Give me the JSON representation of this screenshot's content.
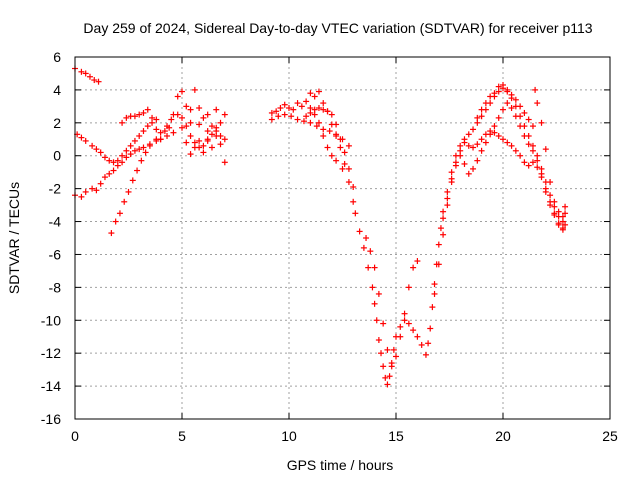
{
  "chart_data": {
    "type": "scatter",
    "title": "Day 259 of 2024, Sidereal Day-to-day VTEC variation (SDTVAR) for receiver p113",
    "xlabel": "GPS time / hours",
    "ylabel": "SDTVAR / TECUs",
    "xlim": [
      0,
      25
    ],
    "ylim": [
      -16,
      6
    ],
    "xticks": [
      0,
      5,
      10,
      15,
      20,
      25
    ],
    "yticks": [
      -16,
      -14,
      -12,
      -10,
      -8,
      -6,
      -4,
      -2,
      0,
      2,
      4,
      6
    ],
    "grid": true,
    "marker": "+",
    "marker_color": "#ff0000",
    "series": [
      {
        "points": [
          [
            0.0,
            5.3
          ],
          [
            0.3,
            5.1
          ],
          [
            0.5,
            5.0
          ],
          [
            0.7,
            4.8
          ],
          [
            0.9,
            4.6
          ],
          [
            1.1,
            4.5
          ],
          [
            0.0,
            -2.4
          ],
          [
            0.3,
            -2.5
          ],
          [
            0.5,
            -2.2
          ],
          [
            0.8,
            -2.0
          ],
          [
            1.0,
            -2.1
          ],
          [
            1.2,
            -1.7
          ],
          [
            1.4,
            -1.3
          ],
          [
            1.6,
            -1.1
          ],
          [
            1.8,
            -0.9
          ],
          [
            2.0,
            -0.6
          ],
          [
            2.2,
            -0.4
          ],
          [
            2.4,
            -0.1
          ],
          [
            2.6,
            0.1
          ],
          [
            2.8,
            0.3
          ],
          [
            3.0,
            0.4
          ],
          [
            3.2,
            0.5
          ],
          [
            3.5,
            0.7
          ],
          [
            3.8,
            0.9
          ],
          [
            4.0,
            1.0
          ],
          [
            4.3,
            1.2
          ],
          [
            4.6,
            1.4
          ],
          [
            5.0,
            1.7
          ],
          [
            5.4,
            2.0
          ],
          [
            5.8,
            1.9
          ],
          [
            6.2,
            1.5
          ],
          [
            6.6,
            1.2
          ],
          [
            7.0,
            1.0
          ],
          [
            0.1,
            1.3
          ],
          [
            0.3,
            1.1
          ],
          [
            0.5,
            0.9
          ],
          [
            0.8,
            0.6
          ],
          [
            1.0,
            0.4
          ],
          [
            1.2,
            0.2
          ],
          [
            1.4,
            -0.1
          ],
          [
            1.6,
            -0.3
          ],
          [
            1.8,
            -0.4
          ],
          [
            2.0,
            -0.3
          ],
          [
            2.2,
            0.0
          ],
          [
            2.4,
            0.3
          ],
          [
            2.6,
            0.6
          ],
          [
            2.8,
            0.9
          ],
          [
            3.0,
            1.2
          ],
          [
            3.2,
            1.5
          ],
          [
            3.4,
            1.8
          ],
          [
            3.6,
            2.0
          ],
          [
            3.8,
            2.2
          ],
          [
            1.7,
            -4.7
          ],
          [
            1.9,
            -4.0
          ],
          [
            2.1,
            -3.5
          ],
          [
            2.3,
            -2.8
          ],
          [
            2.5,
            -2.2
          ],
          [
            2.7,
            -1.5
          ],
          [
            2.9,
            -0.9
          ],
          [
            3.1,
            -0.3
          ],
          [
            3.3,
            0.2
          ],
          [
            3.5,
            0.6
          ],
          [
            3.8,
            1.0
          ],
          [
            4.0,
            1.4
          ],
          [
            4.3,
            1.8
          ],
          [
            4.5,
            2.2
          ],
          [
            4.8,
            2.5
          ],
          [
            5.0,
            2.3
          ],
          [
            5.2,
            1.8
          ],
          [
            5.4,
            1.2
          ],
          [
            5.6,
            0.8
          ],
          [
            5.8,
            0.5
          ],
          [
            6.0,
            0.6
          ],
          [
            6.2,
            0.9
          ],
          [
            6.4,
            1.3
          ],
          [
            6.6,
            1.7
          ],
          [
            6.8,
            2.0
          ],
          [
            7.0,
            2.5
          ],
          [
            2.2,
            2.0
          ],
          [
            2.4,
            2.3
          ],
          [
            2.6,
            2.4
          ],
          [
            2.8,
            2.4
          ],
          [
            3.0,
            2.5
          ],
          [
            3.2,
            2.6
          ],
          [
            3.4,
            2.8
          ],
          [
            3.6,
            2.3
          ],
          [
            3.8,
            1.6
          ],
          [
            4.0,
            1.0
          ],
          [
            4.2,
            1.5
          ],
          [
            4.4,
            1.7
          ],
          [
            4.6,
            2.5
          ],
          [
            4.8,
            3.6
          ],
          [
            5.0,
            3.9
          ],
          [
            5.2,
            3.0
          ],
          [
            5.4,
            2.8
          ],
          [
            5.6,
            4.0
          ],
          [
            5.8,
            2.9
          ],
          [
            6.0,
            2.3
          ],
          [
            6.2,
            2.5
          ],
          [
            6.4,
            1.8
          ],
          [
            6.6,
            2.8
          ],
          [
            6.8,
            1.2
          ],
          [
            7.0,
            -0.4
          ],
          [
            5.2,
            0.8
          ],
          [
            5.4,
            0.1
          ],
          [
            5.6,
            0.5
          ],
          [
            5.8,
            0.9
          ],
          [
            6.0,
            0.2
          ],
          [
            6.2,
            1.0
          ],
          [
            6.4,
            0.5
          ],
          [
            6.6,
            1.5
          ],
          [
            6.8,
            0.7
          ],
          [
            9.2,
            2.6
          ],
          [
            9.4,
            2.7
          ],
          [
            9.6,
            2.9
          ],
          [
            9.8,
            3.1
          ],
          [
            10.0,
            2.9
          ],
          [
            10.2,
            2.8
          ],
          [
            10.4,
            3.2
          ],
          [
            10.6,
            3.0
          ],
          [
            10.8,
            3.3
          ],
          [
            11.0,
            3.8
          ],
          [
            11.2,
            3.6
          ],
          [
            11.4,
            3.9
          ],
          [
            11.6,
            3.2
          ],
          [
            11.8,
            2.7
          ],
          [
            12.0,
            1.9
          ],
          [
            12.2,
            1.2
          ],
          [
            12.4,
            0.5
          ],
          [
            12.6,
            -0.5
          ],
          [
            12.8,
            -1.6
          ],
          [
            13.0,
            -2.8
          ],
          [
            13.1,
            -3.5
          ],
          [
            9.2,
            2.2
          ],
          [
            9.5,
            2.4
          ],
          [
            9.8,
            2.5
          ],
          [
            10.1,
            2.4
          ],
          [
            10.4,
            2.2
          ],
          [
            10.7,
            2.1
          ],
          [
            11.0,
            2.0
          ],
          [
            11.3,
            1.8
          ],
          [
            11.6,
            1.6
          ],
          [
            11.9,
            1.5
          ],
          [
            12.2,
            1.3
          ],
          [
            12.5,
            1.0
          ],
          [
            12.8,
            0.6
          ],
          [
            11.0,
            2.9
          ],
          [
            11.2,
            2.5
          ],
          [
            11.4,
            2.0
          ],
          [
            11.6,
            1.2
          ],
          [
            11.8,
            0.5
          ],
          [
            12.0,
            0.0
          ],
          [
            12.2,
            -0.3
          ],
          [
            12.5,
            -0.8
          ],
          [
            10.8,
            2.4
          ],
          [
            11.0,
            2.6
          ],
          [
            11.2,
            2.8
          ],
          [
            11.4,
            2.9
          ],
          [
            11.6,
            2.8
          ],
          [
            11.8,
            2.7
          ],
          [
            12.0,
            2.5
          ],
          [
            12.2,
            1.9
          ],
          [
            12.4,
            1.0
          ],
          [
            12.6,
            0.2
          ],
          [
            12.8,
            -0.8
          ],
          [
            13.0,
            -1.9
          ],
          [
            13.3,
            -4.6
          ],
          [
            13.5,
            -5.6
          ],
          [
            13.7,
            -6.8
          ],
          [
            13.9,
            -8.0
          ],
          [
            14.0,
            -9.0
          ],
          [
            14.1,
            -10.0
          ],
          [
            14.2,
            -11.2
          ],
          [
            14.3,
            -12.0
          ],
          [
            14.4,
            -12.8
          ],
          [
            14.5,
            -13.5
          ],
          [
            14.6,
            -13.9
          ],
          [
            14.7,
            -13.4
          ],
          [
            14.8,
            -12.6
          ],
          [
            14.9,
            -11.8
          ],
          [
            15.0,
            -11.0
          ],
          [
            15.2,
            -10.4
          ],
          [
            15.4,
            -10.0
          ],
          [
            15.6,
            -10.2
          ],
          [
            15.8,
            -10.6
          ],
          [
            16.0,
            -11.0
          ],
          [
            16.2,
            -11.5
          ],
          [
            16.4,
            -12.1
          ],
          [
            16.5,
            -11.4
          ],
          [
            16.6,
            -10.5
          ],
          [
            16.7,
            -9.2
          ],
          [
            16.8,
            -7.8
          ],
          [
            16.9,
            -6.6
          ],
          [
            17.0,
            -5.4
          ],
          [
            17.1,
            -4.4
          ],
          [
            17.2,
            -3.4
          ],
          [
            17.4,
            -2.2
          ],
          [
            17.6,
            -1.0
          ],
          [
            17.8,
            0.0
          ],
          [
            18.0,
            0.6
          ],
          [
            18.2,
            1.0
          ],
          [
            18.4,
            1.3
          ],
          [
            18.6,
            1.6
          ],
          [
            18.8,
            2.0
          ],
          [
            19.0,
            2.4
          ],
          [
            19.2,
            2.8
          ],
          [
            19.4,
            3.2
          ],
          [
            19.6,
            3.6
          ],
          [
            19.8,
            3.9
          ],
          [
            20.0,
            4.1
          ],
          [
            20.2,
            3.9
          ],
          [
            20.4,
            3.5
          ],
          [
            20.6,
            3.0
          ],
          [
            20.8,
            2.4
          ],
          [
            21.0,
            1.8
          ],
          [
            21.2,
            1.2
          ],
          [
            21.4,
            0.6
          ],
          [
            21.6,
            0.0
          ],
          [
            21.8,
            -0.8
          ],
          [
            22.0,
            -1.6
          ],
          [
            22.2,
            -2.4
          ],
          [
            22.4,
            -3.1
          ],
          [
            22.6,
            -3.7
          ],
          [
            22.8,
            -4.0
          ],
          [
            22.9,
            -3.5
          ],
          [
            13.6,
            -5.0
          ],
          [
            13.8,
            -5.8
          ],
          [
            14.0,
            -6.8
          ],
          [
            14.2,
            -8.4
          ],
          [
            14.4,
            -10.2
          ],
          [
            14.6,
            -11.8
          ],
          [
            14.8,
            -12.8
          ],
          [
            15.0,
            -12.2
          ],
          [
            15.2,
            -11.0
          ],
          [
            15.4,
            -9.6
          ],
          [
            15.6,
            -8.0
          ],
          [
            15.8,
            -6.8
          ],
          [
            16.0,
            -6.4
          ],
          [
            16.8,
            -8.4
          ],
          [
            17.0,
            -6.6
          ],
          [
            17.2,
            -4.8
          ],
          [
            17.4,
            -3.0
          ],
          [
            17.6,
            -1.6
          ],
          [
            17.8,
            -0.6
          ],
          [
            18.0,
            0.0
          ],
          [
            18.2,
            -0.5
          ],
          [
            18.4,
            -1.1
          ],
          [
            18.6,
            -0.8
          ],
          [
            18.8,
            -0.3
          ],
          [
            19.0,
            0.3
          ],
          [
            19.2,
            0.8
          ],
          [
            19.4,
            1.3
          ],
          [
            19.6,
            1.8
          ],
          [
            19.8,
            2.3
          ],
          [
            20.0,
            2.8
          ],
          [
            20.2,
            3.2
          ],
          [
            20.4,
            2.9
          ],
          [
            20.6,
            2.4
          ],
          [
            20.8,
            1.8
          ],
          [
            21.0,
            1.2
          ],
          [
            21.2,
            0.7
          ],
          [
            21.4,
            0.3
          ],
          [
            21.6,
            -0.3
          ],
          [
            21.8,
            -1.1
          ],
          [
            22.0,
            -2.0
          ],
          [
            22.2,
            -2.8
          ],
          [
            22.4,
            -3.5
          ],
          [
            22.6,
            -4.1
          ],
          [
            22.8,
            -4.5
          ],
          [
            17.2,
            -3.8
          ],
          [
            17.4,
            -2.6
          ],
          [
            17.6,
            -1.4
          ],
          [
            17.8,
            -0.4
          ],
          [
            18.0,
            0.3
          ],
          [
            18.2,
            0.8
          ],
          [
            18.4,
            0.6
          ],
          [
            18.6,
            0.5
          ],
          [
            18.8,
            0.7
          ],
          [
            19.0,
            1.0
          ],
          [
            19.2,
            1.3
          ],
          [
            19.4,
            1.5
          ],
          [
            19.6,
            1.4
          ],
          [
            19.8,
            1.2
          ],
          [
            20.0,
            1.0
          ],
          [
            20.2,
            0.8
          ],
          [
            20.4,
            0.6
          ],
          [
            20.6,
            0.3
          ],
          [
            20.8,
            0.0
          ],
          [
            21.0,
            -0.4
          ],
          [
            21.2,
            -0.6
          ],
          [
            21.4,
            -0.4
          ],
          [
            21.6,
            -0.7
          ],
          [
            21.8,
            -1.3
          ],
          [
            22.0,
            -2.2
          ],
          [
            22.2,
            -3.0
          ],
          [
            22.4,
            -3.6
          ],
          [
            22.6,
            -4.2
          ],
          [
            22.8,
            -4.4
          ],
          [
            22.9,
            -4.2
          ],
          [
            18.8,
            2.3
          ],
          [
            19.0,
            2.8
          ],
          [
            19.2,
            3.2
          ],
          [
            19.4,
            3.6
          ],
          [
            19.6,
            3.8
          ],
          [
            19.8,
            4.2
          ],
          [
            20.0,
            4.3
          ],
          [
            20.2,
            4.0
          ],
          [
            20.4,
            3.7
          ],
          [
            20.6,
            3.4
          ],
          [
            20.8,
            3.0
          ],
          [
            21.0,
            2.6
          ],
          [
            21.2,
            2.2
          ],
          [
            21.4,
            1.8
          ],
          [
            21.5,
            4.0
          ],
          [
            21.6,
            3.2
          ],
          [
            21.8,
            2.0
          ],
          [
            22.0,
            0.4
          ],
          [
            22.2,
            -1.6
          ],
          [
            22.4,
            -2.8
          ],
          [
            22.6,
            -3.4
          ],
          [
            22.8,
            -3.7
          ],
          [
            22.9,
            -3.1
          ]
        ]
      }
    ]
  }
}
